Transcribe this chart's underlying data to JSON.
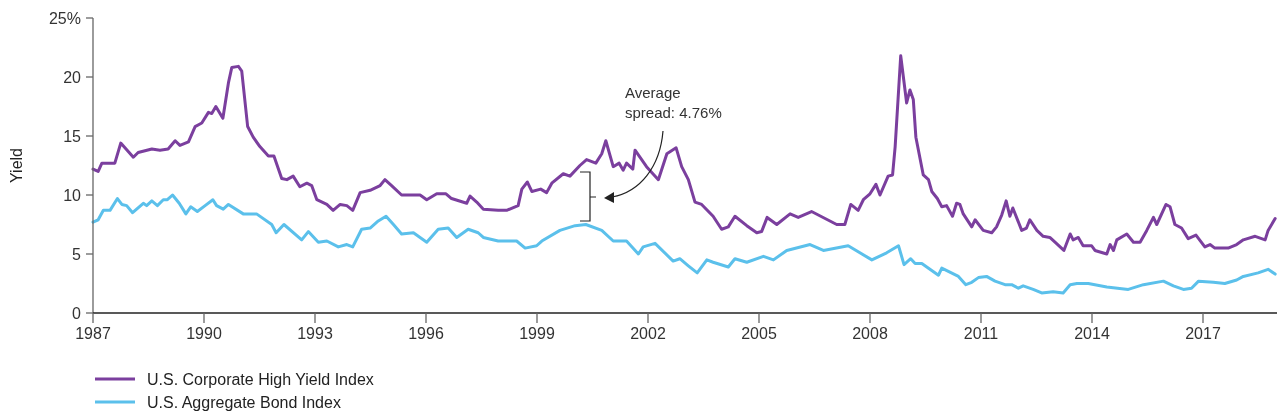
{
  "chart_data": {
    "type": "line",
    "ylabel": "Yield",
    "xlim": [
      1987,
      2019
    ],
    "xticks": [
      1987,
      1990,
      1993,
      1996,
      1999,
      2002,
      2005,
      2008,
      2011,
      2014,
      2017
    ],
    "ylim": [
      0,
      25
    ],
    "yticks": [
      0,
      5,
      10,
      15,
      20,
      {
        "value": 25,
        "label": "25%"
      }
    ],
    "grid": false,
    "legend": "bottom",
    "marker": "none",
    "line_style": "solid",
    "annotations": [
      "Average spread: 4.76%"
    ],
    "series": [
      {
        "name": "U.S. Corporate High Yield Index",
        "color": "#7b3f9e",
        "x": [
          1987.0,
          1987.14,
          1987.24,
          1987.59,
          1987.75,
          1988.09,
          1988.22,
          1988.59,
          1988.81,
          1989.03,
          1989.22,
          1989.35,
          1989.58,
          1989.76,
          1989.94,
          1990.12,
          1990.21,
          1990.32,
          1990.51,
          1990.66,
          1990.75,
          1990.93,
          1991.02,
          1991.18,
          1991.33,
          1991.51,
          1991.74,
          1991.89,
          1992.1,
          1992.24,
          1992.41,
          1992.59,
          1992.78,
          1992.91,
          1993.05,
          1993.32,
          1993.49,
          1993.68,
          1993.86,
          1994.02,
          1994.22,
          1994.49,
          1994.76,
          1994.89,
          1995.07,
          1995.34,
          1995.84,
          1996.02,
          1996.29,
          1996.54,
          1996.69,
          1997.1,
          1997.19,
          1997.37,
          1997.55,
          1997.95,
          1998.18,
          1998.49,
          1998.59,
          1998.74,
          1998.86,
          1999.1,
          1999.26,
          1999.4,
          1999.71,
          1999.89,
          2000.16,
          2000.34,
          2000.59,
          2000.75,
          2000.86,
          2001.06,
          2001.22,
          2001.33,
          2001.42,
          2001.59,
          2001.65,
          2001.96,
          2002.28,
          2002.51,
          2002.76,
          2002.91,
          2003.09,
          2003.27,
          2003.45,
          2003.76,
          2003.99,
          2004.17,
          2004.35,
          2004.67,
          2004.94,
          2005.07,
          2005.22,
          2005.48,
          2005.84,
          2006.06,
          2006.42,
          2007.1,
          2007.32,
          2007.48,
          2007.68,
          2007.82,
          2008.0,
          2008.16,
          2008.27,
          2008.49,
          2008.61,
          2008.68,
          2008.83,
          2008.99,
          2009.08,
          2009.17,
          2009.24,
          2009.44,
          2009.58,
          2009.67,
          2009.82,
          2009.94,
          2010.07,
          2010.23,
          2010.34,
          2010.43,
          2010.52,
          2010.75,
          2010.84,
          2011.06,
          2011.29,
          2011.42,
          2011.56,
          2011.68,
          2011.78,
          2011.86,
          2012.1,
          2012.23,
          2012.32,
          2012.51,
          2012.68,
          2012.86,
          2013.0,
          2013.24,
          2013.41,
          2013.49,
          2013.63,
          2013.76,
          2013.99,
          2014.08,
          2014.4,
          2014.49,
          2014.58,
          2014.67,
          2014.94,
          2015.12,
          2015.3,
          2015.48,
          2015.66,
          2015.75,
          2016.0,
          2016.11,
          2016.24,
          2016.42,
          2016.6,
          2016.81,
          2017.05,
          2017.19,
          2017.32,
          2017.68,
          2017.91,
          2018.09,
          2018.41,
          2018.68,
          2018.76,
          2018.95
        ],
        "values": [
          12.2,
          12.0,
          12.7,
          12.7,
          14.4,
          13.2,
          13.6,
          13.9,
          13.8,
          13.9,
          14.6,
          14.2,
          14.5,
          15.8,
          16.1,
          17.0,
          16.9,
          17.5,
          16.5,
          19.5,
          20.8,
          20.9,
          20.5,
          15.8,
          14.9,
          14.1,
          13.3,
          13.3,
          11.4,
          11.3,
          11.6,
          10.7,
          11.0,
          10.8,
          9.6,
          9.2,
          8.7,
          9.2,
          9.1,
          8.7,
          10.2,
          10.4,
          10.8,
          11.3,
          10.8,
          10.0,
          10.0,
          9.6,
          10.1,
          10.1,
          9.7,
          9.3,
          9.9,
          9.4,
          8.8,
          8.7,
          8.7,
          9.1,
          10.5,
          11.1,
          10.3,
          10.5,
          10.2,
          11.0,
          11.8,
          11.6,
          12.5,
          13.0,
          12.7,
          13.5,
          14.6,
          12.4,
          12.7,
          12.1,
          12.7,
          12.2,
          13.8,
          12.4,
          11.3,
          13.5,
          14.0,
          12.4,
          11.3,
          9.4,
          9.2,
          8.2,
          7.1,
          7.3,
          8.2,
          7.4,
          6.8,
          6.9,
          8.1,
          7.5,
          8.4,
          8.1,
          8.6,
          7.5,
          7.5,
          9.2,
          8.7,
          9.6,
          10.1,
          10.9,
          10.0,
          11.6,
          11.7,
          14.1,
          21.8,
          17.8,
          18.9,
          18.1,
          14.9,
          11.7,
          11.3,
          10.3,
          9.7,
          9.0,
          9.1,
          8.2,
          9.3,
          9.2,
          8.4,
          7.3,
          7.9,
          7.0,
          6.8,
          7.3,
          8.3,
          9.5,
          8.2,
          8.9,
          7.0,
          7.2,
          7.9,
          7.0,
          6.5,
          6.4,
          6.0,
          5.3,
          6.7,
          6.2,
          6.4,
          5.7,
          5.7,
          5.3,
          5.0,
          5.8,
          5.3,
          6.2,
          6.7,
          6.0,
          6.0,
          7.0,
          8.1,
          7.5,
          9.2,
          9.0,
          7.5,
          7.2,
          6.3,
          6.6,
          5.6,
          5.8,
          5.5,
          5.5,
          5.8,
          6.2,
          6.5,
          6.2,
          7.0,
          8.0
        ]
      },
      {
        "name": "U.S. Aggregate Bond Index",
        "color": "#5bc0eb",
        "x": [
          1987.0,
          1987.14,
          1987.28,
          1987.46,
          1987.66,
          1987.78,
          1987.91,
          1988.07,
          1988.36,
          1988.45,
          1988.59,
          1988.74,
          1988.9,
          1989.01,
          1989.15,
          1989.33,
          1989.51,
          1989.64,
          1989.82,
          1990.03,
          1990.24,
          1990.34,
          1990.52,
          1990.66,
          1991.06,
          1991.42,
          1991.83,
          1991.95,
          1992.16,
          1992.64,
          1992.82,
          1993.09,
          1993.32,
          1993.63,
          1993.86,
          1994.02,
          1994.26,
          1994.49,
          1994.71,
          1994.92,
          1995.12,
          1995.34,
          1995.66,
          1996.02,
          1996.33,
          1996.6,
          1996.83,
          1997.14,
          1997.41,
          1997.55,
          1997.95,
          1998.45,
          1998.68,
          1998.99,
          1999.13,
          1999.62,
          2000.03,
          2000.32,
          2000.75,
          2001.06,
          2001.42,
          2001.74,
          2001.87,
          2002.19,
          2002.68,
          2002.86,
          2003.09,
          2003.33,
          2003.59,
          2003.76,
          2004.17,
          2004.35,
          2004.67,
          2005.12,
          2005.39,
          2005.75,
          2006.38,
          2006.74,
          2007.41,
          2008.05,
          2008.45,
          2008.77,
          2008.92,
          2009.1,
          2009.22,
          2009.4,
          2009.85,
          2009.94,
          2010.39,
          2010.59,
          2010.75,
          2010.93,
          2011.15,
          2011.38,
          2011.65,
          2011.83,
          2012.01,
          2012.14,
          2012.41,
          2012.64,
          2012.95,
          2013.22,
          2013.41,
          2013.59,
          2013.9,
          2014.4,
          2014.98,
          2015.39,
          2015.93,
          2016.2,
          2016.47,
          2016.69,
          2016.88,
          2017.28,
          2017.59,
          2017.91,
          2018.09,
          2018.49,
          2018.76,
          2018.95
        ],
        "values": [
          7.7,
          7.9,
          8.7,
          8.7,
          9.7,
          9.2,
          9.1,
          8.5,
          9.3,
          9.1,
          9.5,
          9.1,
          9.6,
          9.6,
          10.0,
          9.3,
          8.4,
          9.0,
          8.6,
          9.1,
          9.6,
          9.1,
          8.8,
          9.2,
          8.4,
          8.4,
          7.5,
          6.8,
          7.5,
          6.2,
          6.9,
          6.0,
          6.1,
          5.6,
          5.8,
          5.6,
          7.1,
          7.2,
          7.8,
          8.2,
          7.5,
          6.7,
          6.8,
          6.0,
          7.1,
          7.2,
          6.4,
          7.1,
          6.8,
          6.4,
          6.1,
          6.1,
          5.5,
          5.7,
          6.1,
          7.0,
          7.4,
          7.5,
          7.0,
          6.1,
          6.1,
          5.0,
          5.6,
          5.9,
          4.4,
          4.6,
          4.0,
          3.4,
          4.5,
          4.3,
          3.9,
          4.6,
          4.3,
          4.8,
          4.5,
          5.3,
          5.8,
          5.3,
          5.7,
          4.5,
          5.1,
          5.7,
          4.1,
          4.6,
          4.2,
          4.2,
          3.2,
          3.8,
          3.1,
          2.4,
          2.6,
          3.0,
          3.1,
          2.7,
          2.4,
          2.4,
          2.1,
          2.3,
          2.0,
          1.7,
          1.8,
          1.7,
          2.4,
          2.5,
          2.5,
          2.2,
          2.0,
          2.4,
          2.7,
          2.3,
          2.0,
          2.1,
          2.7,
          2.6,
          2.5,
          2.8,
          3.1,
          3.4,
          3.7,
          3.3
        ]
      }
    ]
  }
}
